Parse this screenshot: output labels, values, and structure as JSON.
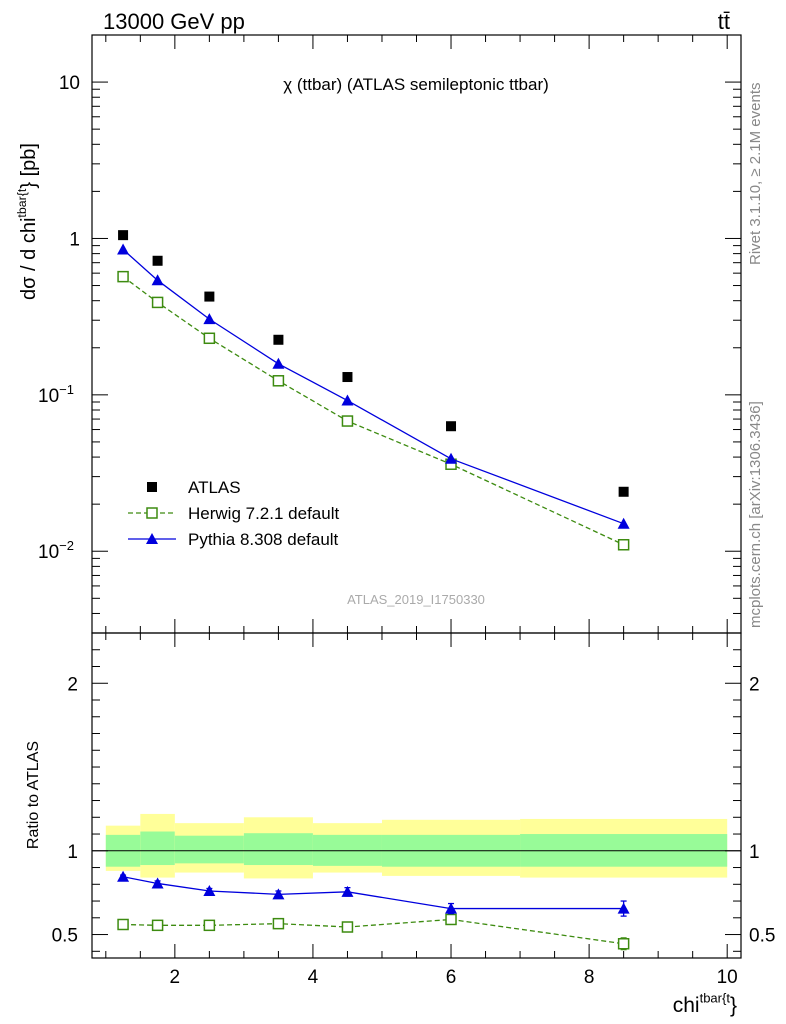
{
  "header": {
    "energy_label": "13000 GeV pp",
    "process_label": "tt̄",
    "plot_title": "χ (ttbar) (ATLAS semileptonic ttbar)",
    "analysis_id": "ATLAS_2019_I1750330",
    "rivet_label": "Rivet 3.1.10, ≥ 2.1M events",
    "mcplots_label": "mcplots.cern.ch [arXiv:1306.3436]"
  },
  "axes": {
    "ylabel_main": "dσ / d chi^{tbar{t}} [pb]",
    "ylabel_ratio": "Ratio to ATLAS",
    "xlabel": "chi^{tbar{t}}"
  },
  "chart_data": [
    {
      "type": "scatter",
      "panel": "main",
      "log_y": true,
      "xlim": [
        0.8,
        10.2
      ],
      "ylim": [
        0.003,
        20
      ],
      "y_tick_labels": [
        "10^{-2}",
        "10^{-1}",
        "1",
        "10"
      ],
      "legend_position": "bottom-left",
      "x": [
        1.25,
        1.75,
        2.5,
        3.5,
        4.5,
        6.0,
        8.5
      ],
      "series": [
        {
          "name": "ATLAS",
          "style": "data",
          "color": "#000000",
          "values": [
            1.05,
            0.72,
            0.425,
            0.225,
            0.13,
            0.063,
            0.024
          ]
        },
        {
          "name": "Herwig 7.2.1 default",
          "style": "herwig",
          "color": "#3d8b10",
          "values": [
            0.57,
            0.39,
            0.23,
            0.123,
            0.068,
            0.036,
            0.011
          ]
        },
        {
          "name": "Pythia 8.308 default",
          "style": "pythia",
          "color": "#0000dd",
          "values": [
            0.85,
            0.54,
            0.305,
            0.158,
            0.092,
            0.039,
            0.015
          ]
        }
      ]
    },
    {
      "type": "line",
      "panel": "ratio",
      "xlim": [
        0.8,
        10.2
      ],
      "ylim": [
        0.36,
        2.3
      ],
      "x_tick_labels": [
        "2",
        "4",
        "6",
        "8",
        "10"
      ],
      "y_tick_labels": [
        "0.5",
        "1",
        "2"
      ],
      "uncertainty_bands": {
        "edges": [
          1.0,
          1.5,
          2.0,
          3.0,
          4.0,
          5.0,
          7.0,
          10.0
        ],
        "inner_lo": [
          0.905,
          0.915,
          0.925,
          0.915,
          0.91,
          0.905,
          0.905
        ],
        "inner_hi": [
          1.095,
          1.115,
          1.09,
          1.105,
          1.095,
          1.095,
          1.1
        ],
        "outer_lo": [
          0.88,
          0.84,
          0.87,
          0.835,
          0.87,
          0.85,
          0.84
        ],
        "outer_hi": [
          1.15,
          1.22,
          1.165,
          1.2,
          1.165,
          1.185,
          1.19
        ],
        "inner_color": "#98fb98",
        "outer_color": "#ffff99"
      },
      "x": [
        1.25,
        1.75,
        2.5,
        3.5,
        4.5,
        6.0,
        8.5
      ],
      "series": [
        {
          "name": "Herwig 7.2.1 default",
          "color": "#3d8b10",
          "values": [
            0.56,
            0.555,
            0.555,
            0.565,
            0.545,
            0.59,
            0.445
          ],
          "errors": [
            0.01,
            0.01,
            0.01,
            0.015,
            0.02,
            0.02,
            0.035
          ]
        },
        {
          "name": "Pythia 8.308 default",
          "color": "#0000dd",
          "values": [
            0.845,
            0.805,
            0.76,
            0.74,
            0.755,
            0.655,
            0.655
          ],
          "errors": [
            0.01,
            0.015,
            0.015,
            0.02,
            0.025,
            0.03,
            0.045
          ]
        }
      ]
    }
  ]
}
